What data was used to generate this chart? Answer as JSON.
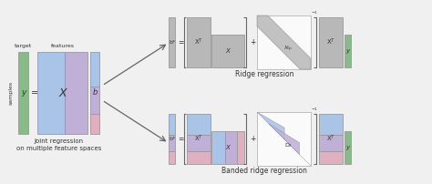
{
  "bg_color": "#f0f0f0",
  "arrow_color": "#666666",
  "gray": "#b8b8b8",
  "light_blue": "#aac4e8",
  "light_purple": "#c0b0d8",
  "light_pink": "#e0b0c0",
  "green": "#88bb88",
  "bracket_color": "#666666",
  "text_color": "#333333",
  "title_top": "Ridge regression",
  "title_bottom": "Banded ridge regression",
  "label_joint": "Joint regression\non multiple feature spaces",
  "label_target": "target",
  "label_features": "features",
  "label_samples": "samples"
}
